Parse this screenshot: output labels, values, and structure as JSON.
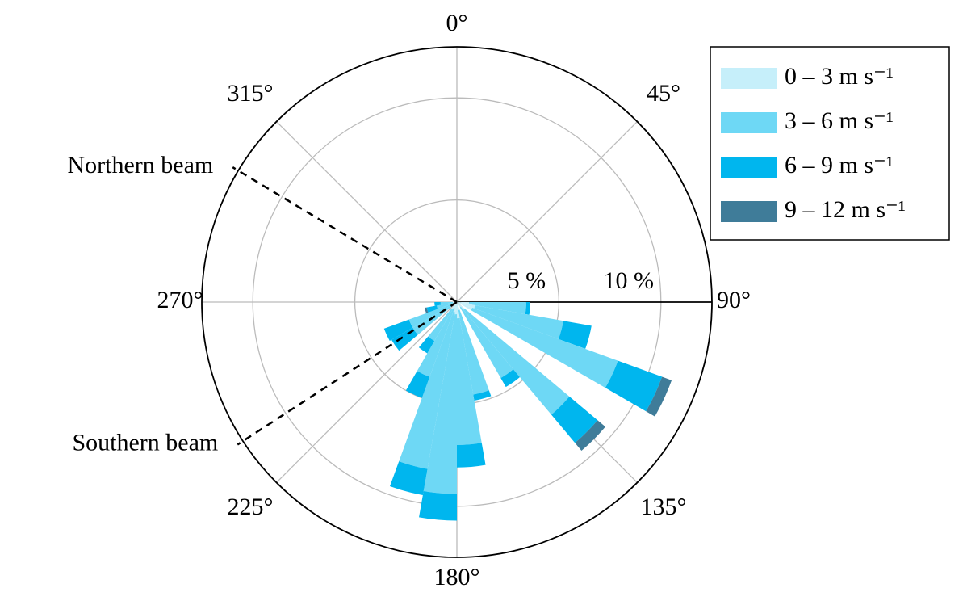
{
  "chart_data": {
    "type": "windrose",
    "x": [
      95,
      105,
      115,
      135,
      145,
      165,
      175,
      185,
      195,
      205,
      215,
      235,
      245,
      255,
      265
    ],
    "series": [
      {
        "name": "0 – 3 m s⁻¹",
        "color": "#c6effa",
        "values": [
          0.6,
          0.9,
          0.8,
          0.5,
          0.3,
          0.4,
          0.8,
          0.6,
          0.5,
          0.3,
          0.4,
          0.3,
          0.2,
          0.2,
          0.2
        ]
      },
      {
        "name": "3 – 6 m s⁻¹",
        "color": "#6ed8f5",
        "values": [
          2.8,
          4.4,
          7.6,
          6.7,
          4.0,
          4.2,
          6.2,
          8.8,
          7.8,
          3.6,
          1.8,
          2.2,
          2.3,
          0.8,
          0.6
        ]
      },
      {
        "name": "6 – 9 m s⁻¹",
        "color": "#00b6ee",
        "values": [
          0.2,
          1.4,
          2.3,
          1.8,
          0.5,
          0.3,
          1.1,
          1.3,
          1.3,
          1.1,
          0.7,
          1.2,
          1.3,
          0.5,
          0.3
        ]
      },
      {
        "name": "9 – 12 m s⁻¹",
        "color": "#3f7c99",
        "values": [
          0,
          0,
          0.5,
          0.5,
          0,
          0,
          0,
          0,
          0,
          0,
          0,
          0,
          0,
          0.1,
          0
        ]
      }
    ],
    "rlim": [
      0,
      12.5
    ],
    "rticks": [
      {
        "value": 5,
        "label": "5 %"
      },
      {
        "value": 10,
        "label": "10 %"
      }
    ],
    "angle_ticks": [
      {
        "value": 0,
        "label": "0°"
      },
      {
        "value": 45,
        "label": "45°"
      },
      {
        "value": 90,
        "label": "90°"
      },
      {
        "value": 135,
        "label": "135°"
      },
      {
        "value": 180,
        "label": "180°"
      },
      {
        "value": 225,
        "label": "225°"
      },
      {
        "value": 270,
        "label": "270°"
      },
      {
        "value": 315,
        "label": "315°"
      }
    ],
    "annotations": [
      {
        "text": "Northern beam",
        "angle": 301
      },
      {
        "text": "Southern beam",
        "angle": 237
      }
    ],
    "grid": true,
    "legend": "upper right"
  }
}
